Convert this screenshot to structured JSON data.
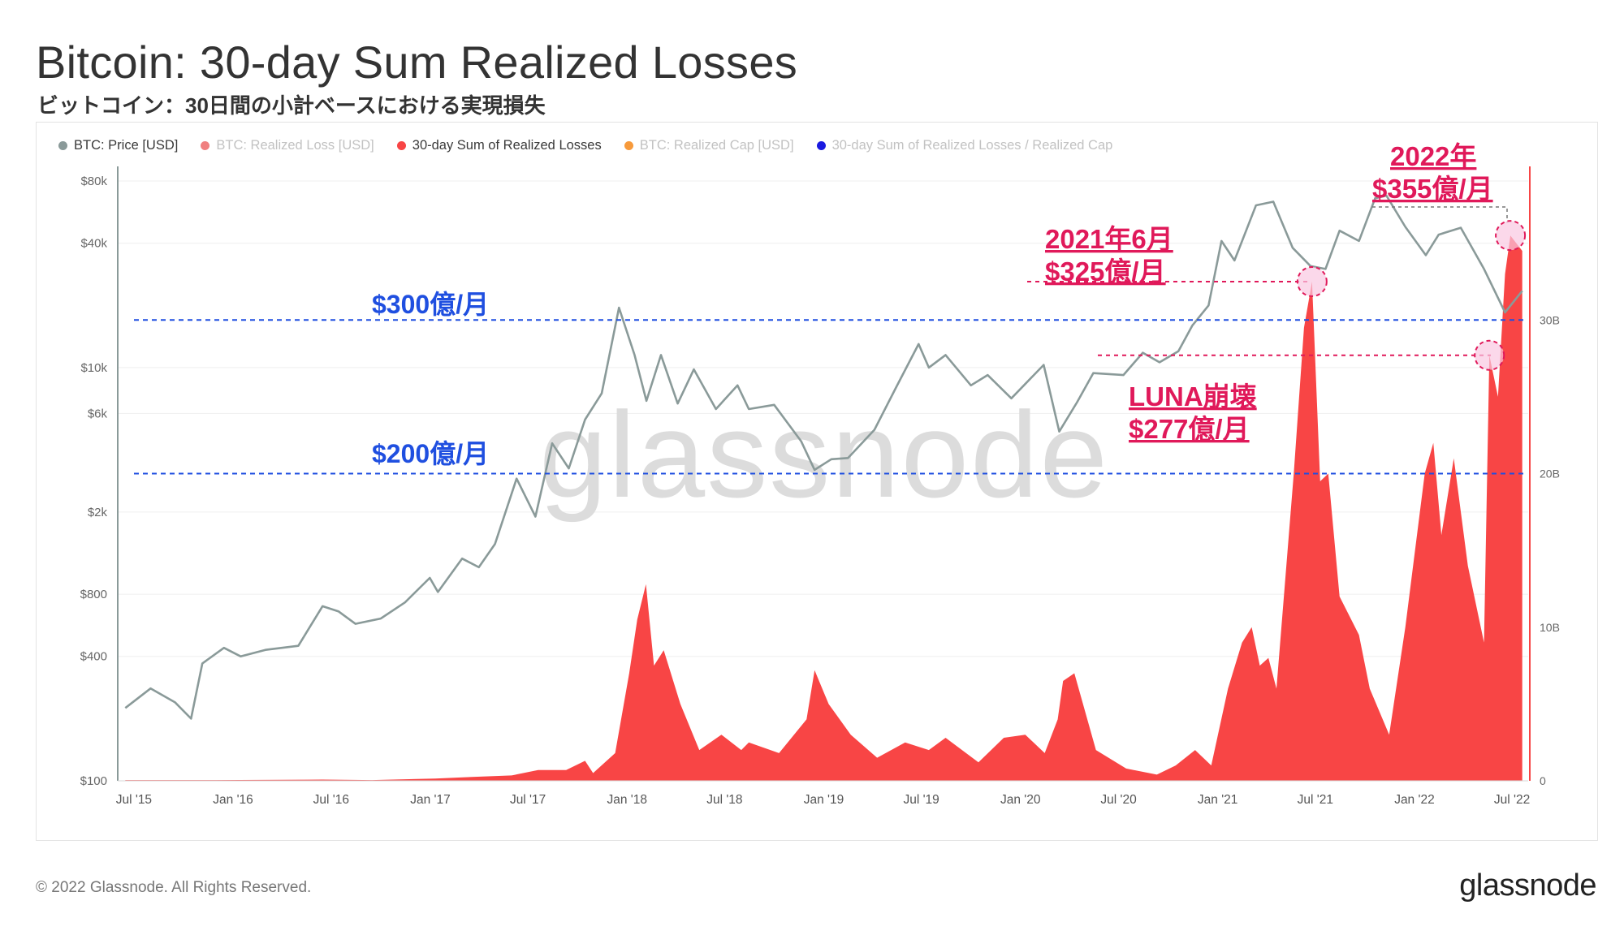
{
  "header": {
    "title": "Bitcoin: 30-day Sum Realized Losses",
    "subtitle": "ビットコイン：30日間の小計ベースにおける実現損失"
  },
  "legend": [
    {
      "label": "BTC: Price [USD]",
      "color": "#8a9a99",
      "state": "active"
    },
    {
      "label": "BTC: Realized Loss [USD]",
      "color": "#f07f7f",
      "state": "muted"
    },
    {
      "label": "30-day Sum of Realized Losses",
      "color": "#f84545",
      "state": "active"
    },
    {
      "label": "BTC: Realized Cap [USD]",
      "color": "#f79a3b",
      "state": "muted"
    },
    {
      "label": "30-day Sum of Realized Losses / Realized Cap",
      "color": "#1a1ae0",
      "state": "muted"
    }
  ],
  "watermark": "glassnode",
  "footer": {
    "copyright": "© 2022 Glassnode. All Rights Reserved.",
    "logo": "glassnode"
  },
  "annotations": {
    "line_300": "$300億/月",
    "line_200": "$200億/月",
    "jun2021_line1": "2021年6月",
    "jun2021_line2": "$325億/月",
    "luna_line1": "LUNA崩壊",
    "luna_line2": "$277億/月",
    "y2022_line1": "2022年",
    "y2022_line2": "$355億/月"
  },
  "colors": {
    "price_line": "#8a9a99",
    "losses_fill": "#f84545",
    "blue_ref": "#1f4fe0",
    "pink_ref": "#e0195a",
    "axis": "#8a9a99"
  },
  "chart_data": {
    "type": "area",
    "x_axis": {
      "ticks": [
        "Jul '15",
        "Jan '16",
        "Jul '16",
        "Jan '17",
        "Jul '17",
        "Jan '18",
        "Jul '18",
        "Jan '19",
        "Jul '19",
        "Jan '20",
        "Jul '20",
        "Jan '21",
        "Jul '21",
        "Jan '22",
        "Jul '22"
      ],
      "range": [
        "2015-06",
        "2022-07"
      ]
    },
    "y_left": {
      "scale": "log",
      "ticks": [
        "$80k",
        "$40k",
        "$10k",
        "$6k",
        "$2k",
        "$800",
        "$400",
        "$100"
      ],
      "tick_values": [
        80000,
        40000,
        10000,
        6000,
        2000,
        800,
        400,
        100
      ],
      "range": [
        100,
        80000
      ]
    },
    "y_right": {
      "scale": "linear",
      "ticks": [
        "30B",
        "20B",
        "10B",
        "0"
      ],
      "tick_values": [
        30,
        20,
        10,
        0
      ],
      "range": [
        0,
        40
      ],
      "unit": "B USD"
    },
    "series": [
      {
        "name": "BTC: Price [USD]",
        "axis": "left",
        "points": [
          [
            "2015-06-15",
            225
          ],
          [
            "2015-08-01",
            280
          ],
          [
            "2015-09-15",
            240
          ],
          [
            "2015-10-15",
            200
          ],
          [
            "2015-11-05",
            370
          ],
          [
            "2015-12-15",
            440
          ],
          [
            "2016-01-15",
            400
          ],
          [
            "2016-03-01",
            430
          ],
          [
            "2016-05-01",
            450
          ],
          [
            "2016-06-15",
            700
          ],
          [
            "2016-07-15",
            660
          ],
          [
            "2016-08-15",
            575
          ],
          [
            "2016-10-01",
            610
          ],
          [
            "2016-11-15",
            730
          ],
          [
            "2016-12-31",
            960
          ],
          [
            "2017-01-15",
            820
          ],
          [
            "2017-03-01",
            1190
          ],
          [
            "2017-04-01",
            1080
          ],
          [
            "2017-05-01",
            1400
          ],
          [
            "2017-06-10",
            2900
          ],
          [
            "2017-07-15",
            1900
          ],
          [
            "2017-08-15",
            4300
          ],
          [
            "2017-09-15",
            3250
          ],
          [
            "2017-10-15",
            5600
          ],
          [
            "2017-11-15",
            7500
          ],
          [
            "2017-12-17",
            19500
          ],
          [
            "2018-01-15",
            11500
          ],
          [
            "2018-02-06",
            6900
          ],
          [
            "2018-03-05",
            11500
          ],
          [
            "2018-04-05",
            6700
          ],
          [
            "2018-05-05",
            9800
          ],
          [
            "2018-06-15",
            6300
          ],
          [
            "2018-07-25",
            8200
          ],
          [
            "2018-08-15",
            6300
          ],
          [
            "2018-10-01",
            6600
          ],
          [
            "2018-11-20",
            4400
          ],
          [
            "2018-12-15",
            3200
          ],
          [
            "2019-01-15",
            3600
          ],
          [
            "2019-02-15",
            3650
          ],
          [
            "2019-04-05",
            5000
          ],
          [
            "2019-05-15",
            8000
          ],
          [
            "2019-06-26",
            13000
          ],
          [
            "2019-07-15",
            10000
          ],
          [
            "2019-08-15",
            11500
          ],
          [
            "2019-10-01",
            8200
          ],
          [
            "2019-11-01",
            9200
          ],
          [
            "2019-12-15",
            7100
          ],
          [
            "2020-02-13",
            10300
          ],
          [
            "2020-03-13",
            4900
          ],
          [
            "2020-04-15",
            6800
          ],
          [
            "2020-05-15",
            9400
          ],
          [
            "2020-07-10",
            9200
          ],
          [
            "2020-08-15",
            11800
          ],
          [
            "2020-09-15",
            10600
          ],
          [
            "2020-10-20",
            12000
          ],
          [
            "2020-11-15",
            16000
          ],
          [
            "2020-12-15",
            20000
          ],
          [
            "2021-01-08",
            41000
          ],
          [
            "2021-02-01",
            33000
          ],
          [
            "2021-03-13",
            61000
          ],
          [
            "2021-04-14",
            63500
          ],
          [
            "2021-05-20",
            38000
          ],
          [
            "2021-06-22",
            31000
          ],
          [
            "2021-07-20",
            30000
          ],
          [
            "2021-08-15",
            46000
          ],
          [
            "2021-09-20",
            41000
          ],
          [
            "2021-10-20",
            66000
          ],
          [
            "2021-11-10",
            68000
          ],
          [
            "2021-12-15",
            48000
          ],
          [
            "2022-01-22",
            35000
          ],
          [
            "2022-02-15",
            44000
          ],
          [
            "2022-03-28",
            47500
          ],
          [
            "2022-05-10",
            30000
          ],
          [
            "2022-06-18",
            18500
          ],
          [
            "2022-07-20",
            23500
          ]
        ]
      },
      {
        "name": "30-day Sum of Realized Losses",
        "axis": "right",
        "points": [
          [
            "2015-06-15",
            0.05
          ],
          [
            "2015-12-01",
            0.05
          ],
          [
            "2016-06-15",
            0.08
          ],
          [
            "2016-09-15",
            0.05
          ],
          [
            "2017-01-10",
            0.15
          ],
          [
            "2017-03-20",
            0.25
          ],
          [
            "2017-06-01",
            0.35
          ],
          [
            "2017-07-20",
            0.7
          ],
          [
            "2017-09-10",
            0.7
          ],
          [
            "2017-10-15",
            1.3
          ],
          [
            "2017-10-30",
            0.5
          ],
          [
            "2017-12-10",
            1.8
          ],
          [
            "2018-01-05",
            7.0
          ],
          [
            "2018-01-20",
            10.5
          ],
          [
            "2018-02-05",
            12.8
          ],
          [
            "2018-02-20",
            7.5
          ],
          [
            "2018-03-10",
            8.5
          ],
          [
            "2018-04-10",
            5.0
          ],
          [
            "2018-05-15",
            2.0
          ],
          [
            "2018-06-25",
            3.0
          ],
          [
            "2018-08-01",
            2.0
          ],
          [
            "2018-08-15",
            2.5
          ],
          [
            "2018-10-10",
            1.8
          ],
          [
            "2018-11-30",
            4.0
          ],
          [
            "2018-12-15",
            7.2
          ],
          [
            "2019-01-10",
            5.0
          ],
          [
            "2019-02-20",
            3.0
          ],
          [
            "2019-04-10",
            1.5
          ],
          [
            "2019-06-01",
            2.5
          ],
          [
            "2019-07-15",
            2.0
          ],
          [
            "2019-08-15",
            2.8
          ],
          [
            "2019-10-15",
            1.2
          ],
          [
            "2019-12-01",
            2.8
          ],
          [
            "2020-01-10",
            3.0
          ],
          [
            "2020-02-15",
            1.8
          ],
          [
            "2020-03-10",
            4.0
          ],
          [
            "2020-03-20",
            6.5
          ],
          [
            "2020-04-10",
            7.0
          ],
          [
            "2020-05-20",
            2.0
          ],
          [
            "2020-07-15",
            0.8
          ],
          [
            "2020-09-10",
            0.4
          ],
          [
            "2020-10-15",
            1.0
          ],
          [
            "2020-11-20",
            2.0
          ],
          [
            "2020-12-20",
            1.0
          ],
          [
            "2021-01-20",
            6.0
          ],
          [
            "2021-02-15",
            9.0
          ],
          [
            "2021-03-05",
            10.0
          ],
          [
            "2021-03-20",
            7.5
          ],
          [
            "2021-04-05",
            8.0
          ],
          [
            "2021-04-20",
            6.0
          ],
          [
            "2021-05-22",
            20.0
          ],
          [
            "2021-06-10",
            29.5
          ],
          [
            "2021-06-25",
            32.5
          ],
          [
            "2021-07-10",
            19.5
          ],
          [
            "2021-07-25",
            20.0
          ],
          [
            "2021-08-15",
            12.0
          ],
          [
            "2021-09-20",
            9.5
          ],
          [
            "2021-10-10",
            6.0
          ],
          [
            "2021-11-15",
            3.0
          ],
          [
            "2021-12-15",
            10.0
          ],
          [
            "2022-01-20",
            20.0
          ],
          [
            "2022-02-05",
            22.0
          ],
          [
            "2022-02-20",
            16.0
          ],
          [
            "2022-03-15",
            21.0
          ],
          [
            "2022-04-10",
            14.0
          ],
          [
            "2022-05-10",
            9.0
          ],
          [
            "2022-05-20",
            27.7
          ],
          [
            "2022-06-05",
            25.0
          ],
          [
            "2022-06-18",
            33.0
          ],
          [
            "2022-06-28",
            35.5
          ],
          [
            "2022-07-20",
            34.5
          ]
        ]
      }
    ],
    "reference_lines": [
      {
        "label": "$300億/月",
        "value": 30,
        "axis": "right"
      },
      {
        "label": "$200億/月",
        "value": 20,
        "axis": "right"
      }
    ],
    "highlights": [
      {
        "label": "2021年6月 $325億/月",
        "date": "2021-06-25",
        "value": 32.5
      },
      {
        "label": "LUNA崩壊 $277億/月",
        "date": "2022-05-20",
        "value": 27.7
      },
      {
        "label": "2022年 $355億/月",
        "date": "2022-06-28",
        "value": 35.5
      }
    ]
  }
}
